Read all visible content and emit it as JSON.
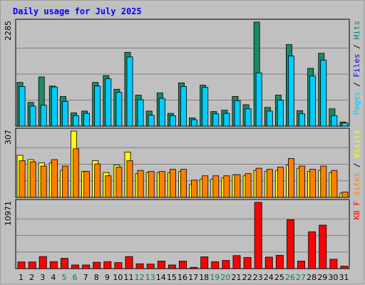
{
  "chart_data": {
    "type": "bar",
    "title": "Daily usage for July 2025",
    "days": [
      "1",
      "2",
      "3",
      "4",
      "5",
      "6",
      "7",
      "8",
      "9",
      "10",
      "11",
      "12",
      "13",
      "14",
      "15",
      "16",
      "17",
      "18",
      "19",
      "20",
      "21",
      "22",
      "23",
      "24",
      "25",
      "26",
      "27",
      "28",
      "29",
      "30",
      "31"
    ],
    "weekend_days": [
      "5",
      "6",
      "12",
      "13",
      "19",
      "20",
      "26",
      "27"
    ],
    "panels": [
      {
        "id": "hits",
        "max_label": "2285",
        "ymax": 2285,
        "legend": [
          {
            "text": "Pages",
            "color": "#00ccff"
          },
          {
            "text": " / ",
            "color": "#000000"
          },
          {
            "text": "Files",
            "color": "#0000ff"
          },
          {
            "text": " / ",
            "color": "#000000"
          },
          {
            "text": "Hits",
            "color": "#008080"
          }
        ],
        "series": [
          {
            "name": "Hits",
            "color": "#1b8a66",
            "values": [
              960,
              520,
              1080,
              880,
              650,
              290,
              330,
              960,
              1110,
              810,
              1620,
              680,
              330,
              730,
              280,
              950,
              180,
              900,
              320,
              350,
              650,
              470,
              2285,
              410,
              680,
              1790,
              340,
              1270,
              1600,
              380,
              90
            ]
          },
          {
            "name": "Pages",
            "color": "#00ccff",
            "values": [
              870,
              440,
              460,
              860,
              540,
              230,
              280,
              880,
              1040,
              740,
              1520,
              580,
              240,
              610,
              230,
              870,
              140,
              850,
              270,
              280,
              560,
              380,
              1170,
              330,
              570,
              1540,
              270,
              1100,
              1450,
              230,
              70
            ]
          }
        ]
      },
      {
        "id": "visits",
        "max_label": "307",
        "ymax": 307,
        "legend": [
          {
            "text": "Sites",
            "color": "#ff8000"
          },
          {
            "text": " / ",
            "color": "#000000"
          },
          {
            "text": "Visits",
            "color": "#ffff00"
          }
        ],
        "series": [
          {
            "name": "Visits",
            "color": "#ffff00",
            "values": [
              195,
              175,
              160,
              160,
              125,
              307,
              120,
              170,
              115,
              150,
              210,
              110,
              115,
              115,
              115,
              120,
              60,
              85,
              85,
              90,
              105,
              100,
              125,
              120,
              125,
              150,
              135,
              120,
              125,
              115,
              20
            ]
          },
          {
            "name": "Sites",
            "color": "#ff8000",
            "values": [
              170,
              165,
              145,
              175,
              145,
              225,
              120,
              155,
              100,
              140,
              170,
              125,
              120,
              120,
              130,
              130,
              80,
              100,
              100,
              100,
              105,
              110,
              135,
              130,
              140,
              180,
              145,
              130,
              145,
              125,
              25
            ]
          }
        ]
      },
      {
        "id": "kbytes",
        "max_label": "10971",
        "ymax": 10971,
        "legend": [
          {
            "text": "KB F",
            "color": "#ff0000"
          }
        ],
        "series": [
          {
            "name": "KB F",
            "color": "#ff0000",
            "values": [
              1100,
              1100,
              2000,
              1150,
              1700,
              600,
              600,
              1050,
              1150,
              1000,
              2000,
              800,
              750,
              1250,
              600,
              1250,
              200,
              1950,
              1150,
              1350,
              2150,
              1850,
              10971,
              1900,
              2200,
              8100,
              1250,
              6100,
              7200,
              1550,
              400
            ]
          }
        ]
      }
    ]
  }
}
